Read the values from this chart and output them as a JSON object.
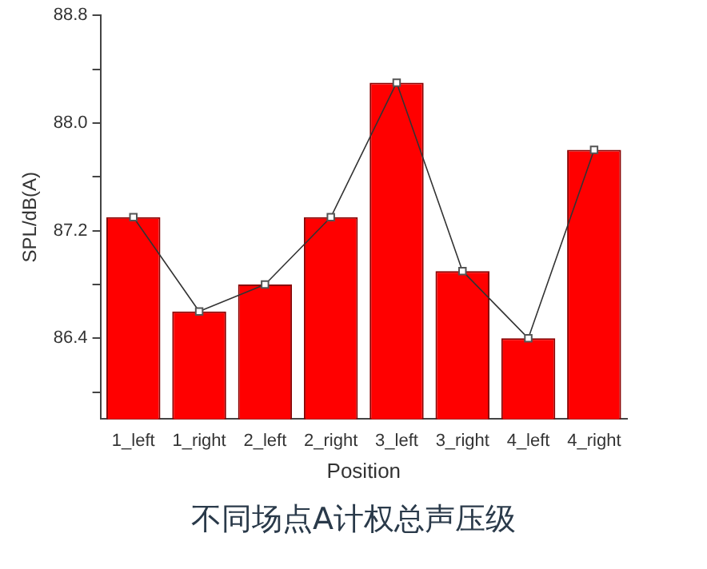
{
  "chart_data": {
    "type": "bar",
    "xlabel": "Position",
    "ylabel": "SPL/dB(A)",
    "categories": [
      "1_left",
      "1_right",
      "2_left",
      "2_right",
      "3_left",
      "3_right",
      "4_left",
      "4_right"
    ],
    "series": [
      {
        "color": "#ff0000",
        "values": [
          87.3,
          86.6,
          86.8,
          87.3,
          88.3,
          86.9,
          86.4,
          87.8
        ]
      },
      {
        "type": "line",
        "color": "#333333",
        "values": [
          87.3,
          86.6,
          86.8,
          87.3,
          88.3,
          86.9,
          86.4,
          87.8
        ],
        "marker": "square",
        "line_style": "solid"
      }
    ],
    "ylim": [
      85.8,
      88.8
    ],
    "yticks": [
      {
        "value": 86.0,
        "label": null
      },
      {
        "value": 86.4,
        "label": "86.4"
      },
      {
        "value": 86.8,
        "label": null
      },
      {
        "value": 87.2,
        "label": "87.2"
      },
      {
        "value": 87.6,
        "label": null
      },
      {
        "value": 88.0,
        "label": "88.0"
      },
      {
        "value": 88.4,
        "label": null
      },
      {
        "value": 88.8,
        "label": "88.8"
      }
    ],
    "grid": false,
    "legend": false,
    "annotations": [
      "不同场点A计权总声压级"
    ]
  }
}
